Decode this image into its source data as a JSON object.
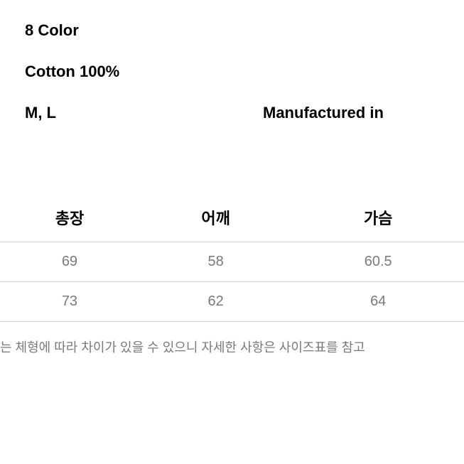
{
  "info": {
    "color_line": "8 Color",
    "material_line": "Cotton 100%",
    "sizes_label": "M, L",
    "manufactured_label": "Manufactured in"
  },
  "size_table": {
    "type": "table",
    "columns": [
      "총장",
      "어깨",
      "가슴"
    ],
    "rows": [
      [
        "69",
        "58",
        "60.5"
      ],
      [
        "73",
        "62",
        "64"
      ]
    ],
    "header_color": "#000000",
    "cell_color": "#7a7a7a",
    "border_color": "#d0d0d0",
    "header_fontsize": 22,
    "cell_fontsize": 20,
    "background_color": "#ffffff"
  },
  "note": {
    "text": "는 체형에 따라 차이가 있을 수 있으니 자세한 사항은 사이즈표를 참고",
    "color": "#7a7a7a",
    "fontsize": 18
  }
}
